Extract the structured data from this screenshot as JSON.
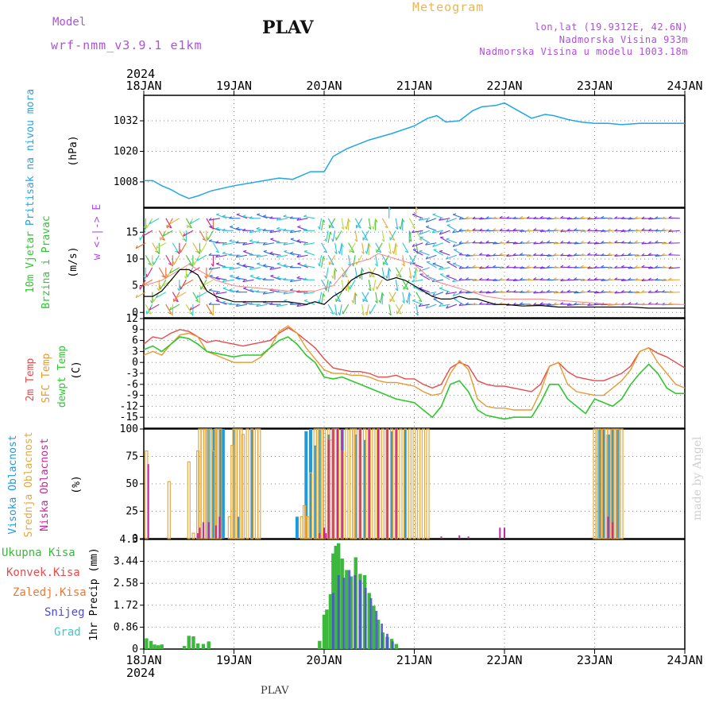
{
  "header": {
    "model_label": "Model",
    "model_name": "wrf-nmm_v3.9.1 e1km",
    "station": "PLAV",
    "title": "Meteogram",
    "info_lines": [
      "lon,lat (19.9312E, 42.6N)",
      "Nadmorska Visina 933m",
      "Nadmorska Visina u modelu 1003.18m"
    ]
  },
  "footer": {
    "station": "PLAV",
    "credit": "made by Angel"
  },
  "x_axis": {
    "year": "2024",
    "ticks": [
      "18JAN",
      "19JAN",
      "20JAN",
      "21JAN",
      "22JAN",
      "23JAN",
      "24JAN"
    ]
  },
  "colors": {
    "pressure": "#22a6e6",
    "temp2m": "#e84a4a",
    "sfc": "#e89a30",
    "dewpt": "#2ec82e",
    "high_cloud": "#1e9be0",
    "mid_cloud": "#e8a83a",
    "low_cloud": "#c8269a",
    "precip_total": "#3cb83c",
    "precip_conv": "#e84a4a",
    "precip_frozen": "#e87a3a",
    "snow": "#4a4ae0",
    "grad": "#3ac8c8",
    "wind_speed": "#000000",
    "wind_gust": "#ff8080"
  },
  "chart_data": [
    {
      "type": "line",
      "panel": "pressure",
      "ylabel": [
        "Pritisak na nivou mora",
        "(hPa)"
      ],
      "yticks": [
        1008,
        1020,
        1032
      ],
      "ylim": [
        998,
        1042
      ],
      "grid": true,
      "series": [
        {
          "x": [
            0,
            0.1,
            0.2,
            0.3,
            0.4,
            0.5,
            0.6,
            0.75,
            1.0,
            1.25,
            1.5,
            1.65,
            1.75,
            1.85,
            2.0,
            2.1,
            2.25,
            2.5,
            2.75,
            3.0,
            3.15,
            3.25,
            3.35,
            3.5,
            3.65,
            3.75,
            3.9,
            4.0,
            4.15,
            4.3,
            4.45,
            4.55,
            4.7,
            4.85,
            5.0,
            5.15,
            5.3,
            5.5,
            5.75,
            6.0
          ],
          "y": [
            1008.5,
            1008.5,
            1006.5,
            1005,
            1003,
            1001.5,
            1002.5,
            1004.5,
            1006.5,
            1008,
            1009.5,
            1009,
            1010.5,
            1012,
            1012,
            1018,
            1021,
            1024.5,
            1027,
            1030,
            1033,
            1034,
            1031.5,
            1032,
            1036,
            1037.5,
            1038,
            1039,
            1036,
            1033,
            1034.5,
            1034,
            1032.5,
            1031.5,
            1031,
            1031,
            1030.5,
            1031,
            1031,
            1031
          ]
        }
      ]
    },
    {
      "type": "line",
      "panel": "wind",
      "ylabel": [
        "10m Vjetar",
        "Brzina i Pravac",
        "(m/s)"
      ],
      "compass": "w <-|-> E",
      "yticks": [
        0,
        5,
        10,
        15
      ],
      "ylim": [
        -1,
        19.5
      ],
      "grid": true,
      "series": [
        {
          "name": "speed",
          "x": [
            0,
            0.1,
            0.2,
            0.3,
            0.4,
            0.5,
            0.6,
            0.7,
            0.8,
            0.9,
            1.0,
            1.2,
            1.4,
            1.6,
            1.8,
            1.9,
            2.0,
            2.1,
            2.2,
            2.3,
            2.4,
            2.5,
            2.6,
            2.7,
            2.8,
            2.9,
            3.0,
            3.1,
            3.2,
            3.3,
            3.4,
            3.5,
            3.6,
            3.7,
            3.8,
            3.9,
            4.0,
            4.2,
            4.4,
            4.6,
            4.8,
            5.0,
            5.2,
            5.4,
            5.6,
            5.8,
            6.0
          ],
          "y": [
            3,
            3,
            4,
            6,
            8,
            8,
            7,
            4,
            3,
            2.5,
            2,
            2,
            2,
            2,
            1.5,
            2,
            1.5,
            3,
            4,
            6,
            7,
            7.5,
            7,
            6,
            6.5,
            6,
            5,
            4,
            3,
            2.5,
            2.5,
            3,
            2.5,
            2.5,
            2,
            1.5,
            1.5,
            1.2,
            1.3,
            1,
            1,
            1,
            1,
            1,
            0.8,
            0.8,
            0.8
          ]
        },
        {
          "name": "gust",
          "x": [
            0,
            0.2,
            0.4,
            0.5,
            0.6,
            0.8,
            1.0,
            1.3,
            1.6,
            1.9,
            2.1,
            2.3,
            2.5,
            2.6,
            2.8,
            3.0,
            3.2,
            3.4,
            3.6,
            3.8,
            4.0,
            4.4,
            4.8,
            5.2,
            5.6,
            6.0
          ],
          "y": [
            5,
            6,
            8,
            9,
            8,
            6,
            5,
            4.5,
            4,
            4,
            5,
            9,
            10,
            11,
            10,
            9,
            6,
            5,
            4,
            3,
            2.5,
            2.5,
            2,
            1.5,
            1.5,
            1.5
          ]
        }
      ]
    },
    {
      "type": "line",
      "panel": "temperature",
      "ylabel": [
        "2m Temp",
        "SFC Temp",
        "dewpt Temp",
        "(C)"
      ],
      "yticks": [
        -15,
        -12,
        -9,
        -6,
        -3,
        0,
        3,
        6,
        9,
        12
      ],
      "ylim": [
        -18,
        12
      ],
      "grid": true,
      "series": [
        {
          "name": "2m Temp",
          "x": [
            0,
            0.1,
            0.2,
            0.3,
            0.4,
            0.5,
            0.6,
            0.7,
            0.8,
            0.9,
            1.0,
            1.1,
            1.2,
            1.3,
            1.4,
            1.5,
            1.6,
            1.7,
            1.8,
            1.9,
            2.0,
            2.1,
            2.2,
            2.3,
            2.4,
            2.5,
            2.6,
            2.7,
            2.8,
            2.9,
            3.0,
            3.1,
            3.2,
            3.3,
            3.4,
            3.5,
            3.6,
            3.7,
            3.8,
            3.9,
            4.0,
            4.1,
            4.2,
            4.3,
            4.4,
            4.5,
            4.6,
            4.7,
            4.8,
            4.9,
            5.0,
            5.1,
            5.2,
            5.3,
            5.4,
            5.5,
            5.6,
            5.7,
            5.8,
            5.9,
            6.0
          ],
          "y": [
            5,
            7,
            6.5,
            8,
            9,
            8.5,
            7,
            5.5,
            6,
            5.5,
            5,
            4.5,
            5,
            5.5,
            6,
            8,
            9.5,
            8,
            6,
            4,
            1,
            -1.5,
            -2,
            -2.5,
            -2.5,
            -3,
            -4,
            -4,
            -3.5,
            -4.5,
            -4.5,
            -6,
            -7,
            -6,
            -1.5,
            0,
            -1,
            -5,
            -6,
            -6.5,
            -6.5,
            -7,
            -7.5,
            -8,
            -6,
            -1,
            0,
            -2.5,
            -4,
            -4.5,
            -5,
            -5,
            -4,
            -3,
            -1,
            3,
            4,
            2.5,
            1.5,
            0,
            -1.5
          ]
        },
        {
          "name": "SFC Temp",
          "x": [
            0,
            0.1,
            0.2,
            0.3,
            0.4,
            0.5,
            0.6,
            0.7,
            0.8,
            0.9,
            1.0,
            1.1,
            1.2,
            1.3,
            1.4,
            1.5,
            1.6,
            1.7,
            1.8,
            1.9,
            2.0,
            2.1,
            2.2,
            2.3,
            2.4,
            2.5,
            2.6,
            2.7,
            2.8,
            2.9,
            3.0,
            3.1,
            3.2,
            3.3,
            3.4,
            3.5,
            3.6,
            3.7,
            3.8,
            3.9,
            4.0,
            4.1,
            4.2,
            4.3,
            4.4,
            4.5,
            4.6,
            4.7,
            4.8,
            4.9,
            5.0,
            5.1,
            5.2,
            5.3,
            5.4,
            5.5,
            5.6,
            5.7,
            5.8,
            5.9,
            6.0
          ],
          "y": [
            2,
            3,
            2,
            5,
            7.5,
            8,
            7,
            3,
            2,
            1,
            0,
            0,
            0,
            1.5,
            4,
            8.5,
            10,
            8,
            4,
            1,
            -2,
            -3,
            -3,
            -3.5,
            -3.5,
            -4,
            -5,
            -5.5,
            -5.5,
            -6,
            -6.5,
            -8,
            -9,
            -8.5,
            -3,
            0.5,
            -2,
            -10,
            -12,
            -12.5,
            -12.5,
            -13,
            -13,
            -13,
            -8,
            -1,
            0,
            -6,
            -8,
            -8.5,
            -9,
            -9,
            -7,
            -5,
            -2,
            3,
            4,
            0,
            -3,
            -6,
            -7
          ]
        },
        {
          "name": "dewpt Temp",
          "x": [
            0,
            0.1,
            0.2,
            0.3,
            0.4,
            0.5,
            0.6,
            0.7,
            0.8,
            0.9,
            1.0,
            1.1,
            1.2,
            1.3,
            1.4,
            1.5,
            1.6,
            1.7,
            1.8,
            1.9,
            2.0,
            2.1,
            2.2,
            2.3,
            2.4,
            2.5,
            2.6,
            2.7,
            2.8,
            2.9,
            3.0,
            3.1,
            3.2,
            3.3,
            3.4,
            3.5,
            3.6,
            3.7,
            3.8,
            3.9,
            4.0,
            4.1,
            4.2,
            4.3,
            4.4,
            4.5,
            4.6,
            4.7,
            4.8,
            4.9,
            5.0,
            5.1,
            5.2,
            5.3,
            5.4,
            5.5,
            5.6,
            5.7,
            5.8,
            5.9,
            6.0
          ],
          "y": [
            3.5,
            4.5,
            3,
            5,
            7,
            6.5,
            5,
            3,
            2.5,
            2,
            1.5,
            2,
            2,
            2,
            4,
            6,
            7,
            5,
            2,
            0,
            -4,
            -4.5,
            -4,
            -5,
            -6,
            -7,
            -8,
            -9,
            -10,
            -10.5,
            -11,
            -13,
            -15,
            -12,
            -6,
            -5,
            -8,
            -13,
            -14.5,
            -15,
            -15.5,
            -15,
            -15,
            -15,
            -11,
            -6,
            -6,
            -10,
            -12,
            -14,
            -10,
            -11,
            -12,
            -10,
            -6,
            -3,
            -0.5,
            -3,
            -7,
            -8.5,
            -8.5
          ]
        }
      ]
    },
    {
      "type": "bar",
      "panel": "cloud",
      "ylabel": [
        "Visoka Oblacnost",
        "Srednja Oblacnost",
        "Niska Oblacnost",
        "(%)"
      ],
      "yticks": [
        0,
        25,
        50,
        75,
        100
      ],
      "ylim": [
        0,
        100
      ],
      "grid": true,
      "series": [
        {
          "name": "Visoka Oblacnost",
          "x": [
            0.7,
            0.72,
            0.75,
            0.78,
            0.85,
            0.88,
            0.92,
            1.0,
            1.05,
            1.2,
            1.7,
            1.8,
            1.85,
            1.9,
            1.95,
            2.05,
            2.2,
            2.35,
            2.45,
            2.6,
            2.75,
            2.9,
            5.05,
            5.1,
            5.15,
            5.2,
            5.25
          ],
          "y": [
            0,
            100,
            0,
            100,
            100,
            100,
            0,
            100,
            20,
            100,
            20,
            98,
            100,
            85,
            100,
            95,
            100,
            95,
            90,
            100,
            98,
            100,
            100,
            100,
            95,
            100,
            100
          ]
        },
        {
          "name": "Srednja Oblacnost",
          "x": [
            0.03,
            0.28,
            0.5,
            0.55,
            0.6,
            0.62,
            0.65,
            0.68,
            0.7,
            0.74,
            0.77,
            0.8,
            0.82,
            0.85,
            0.95,
            0.98,
            1.0,
            1.02,
            1.05,
            1.08,
            1.1,
            1.15,
            1.2,
            1.25,
            1.28,
            1.75,
            1.78,
            1.8,
            1.82,
            1.85,
            1.9,
            1.93,
            1.95,
            1.98,
            2.0,
            2.05,
            2.08,
            2.1,
            2.13,
            2.15,
            2.2,
            2.25,
            2.3,
            2.33,
            2.35,
            2.4,
            2.45,
            2.5,
            2.55,
            2.6,
            2.65,
            2.7,
            2.75,
            2.8,
            2.85,
            2.9,
            2.95,
            3.0,
            3.05,
            3.1,
            3.15,
            5.0,
            5.03,
            5.06,
            5.1,
            5.13,
            5.16,
            5.2,
            5.23,
            5.26,
            5.3
          ],
          "y": [
            80,
            52,
            70,
            5,
            80,
            100,
            100,
            100,
            100,
            100,
            80,
            100,
            100,
            100,
            20,
            85,
            100,
            100,
            100,
            100,
            95,
            100,
            100,
            100,
            100,
            20,
            30,
            20,
            20,
            60,
            100,
            100,
            100,
            100,
            100,
            100,
            90,
            100,
            100,
            100,
            80,
            100,
            100,
            100,
            100,
            100,
            100,
            100,
            100,
            100,
            100,
            100,
            100,
            100,
            100,
            100,
            100,
            100,
            100,
            100,
            100,
            100,
            100,
            100,
            100,
            100,
            100,
            100,
            100,
            100,
            100
          ]
        },
        {
          "name": "Niska Oblacnost",
          "x": [
            0.05,
            0.6,
            0.62,
            0.66,
            0.72,
            0.8,
            0.84,
            1.95,
            2.0,
            2.02,
            2.05,
            2.1,
            2.15,
            2.2,
            2.4,
            2.5,
            2.6,
            2.7,
            2.8,
            3.3,
            3.5,
            3.6,
            3.95,
            4.0,
            5.15,
            5.2
          ],
          "y": [
            68,
            5,
            10,
            15,
            15,
            12,
            20,
            5,
            10,
            5,
            90,
            100,
            100,
            100,
            100,
            100,
            100,
            100,
            100,
            2,
            3,
            2,
            10,
            10,
            20,
            15
          ]
        }
      ]
    },
    {
      "type": "bar",
      "panel": "precip",
      "ylabel": [
        "1hr Precip (mm)"
      ],
      "legend": [
        "Ukupna Kisa",
        "Konvek.Kisa",
        "Zaledj.Kisa",
        "Snijeg",
        "Grad"
      ],
      "yticks": [
        0,
        0.86,
        1.72,
        2.58,
        3.44,
        4.3
      ],
      "ylim": [
        0,
        4.3
      ],
      "grid": true,
      "series": [
        {
          "name": "Ukupna Kisa",
          "x": [
            0.03,
            0.08,
            0.12,
            0.16,
            0.2,
            0.45,
            0.5,
            0.55,
            0.6,
            0.66,
            0.72,
            1.95,
            2.0,
            2.03,
            2.07,
            2.1,
            2.13,
            2.16,
            2.2,
            2.25,
            2.3,
            2.35,
            2.4,
            2.45,
            2.5,
            2.55,
            2.6,
            2.65,
            2.7,
            2.75,
            2.8
          ],
          "y": [
            0.42,
            0.32,
            0.18,
            0.15,
            0.18,
            0.12,
            0.52,
            0.5,
            0.22,
            0.2,
            0.3,
            0.32,
            1.35,
            1.55,
            2.15,
            3.75,
            4.05,
            4.15,
            3.55,
            3.1,
            2.85,
            3.6,
            2.95,
            2.9,
            2.2,
            1.7,
            1.15,
            0.65,
            0.48,
            0.4,
            0.2
          ]
        },
        {
          "name": "Snijeg",
          "x": [
            2.1,
            2.16,
            2.22,
            2.28,
            2.34,
            2.4,
            2.46,
            2.52,
            2.58,
            2.64,
            2.7,
            2.76
          ],
          "y": [
            2.2,
            2.9,
            2.8,
            3.1,
            2.9,
            2.7,
            2.4,
            2.0,
            1.5,
            1.0,
            0.6,
            0.3
          ]
        }
      ]
    }
  ]
}
